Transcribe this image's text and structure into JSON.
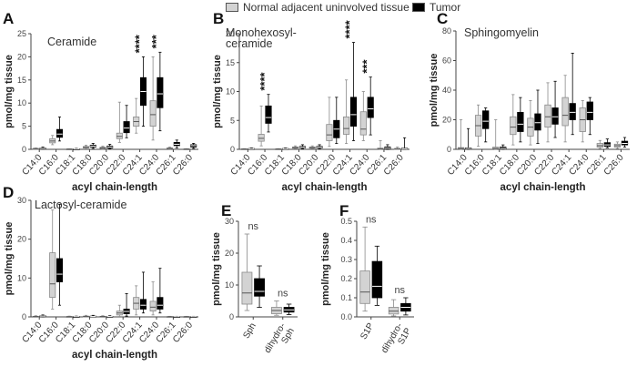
{
  "legend": {
    "normal_label": "Normal adjacent uninvolved tissue",
    "tumor_label": "Tumor",
    "normal_color": "#d3d3d3",
    "tumor_color": "#000000"
  },
  "chart_data": [
    {
      "panel_letter": "A",
      "type": "box",
      "title": "Ceramide",
      "xlabel": "acyl chain-length",
      "ylabel": "pmol/mg tissue",
      "ylim": [
        0,
        25
      ],
      "yticks": [
        0,
        5,
        10,
        15,
        20,
        25
      ],
      "categories": [
        "C14:0",
        "C16:0",
        "C18:1",
        "C18:0",
        "C20:0",
        "C22:0",
        "C24:1",
        "C24:0",
        "C26:1",
        "C26:0"
      ],
      "series": [
        {
          "name": "Normal adjacent uninvolved tissue",
          "color": "#d3d3d3",
          "boxes": [
            {
              "min": 0.05,
              "q1": 0.1,
              "median": 0.15,
              "q3": 0.2,
              "max": 0.3
            },
            {
              "min": 1.0,
              "q1": 1.4,
              "median": 1.8,
              "q3": 2.3,
              "max": 3.0
            },
            {
              "min": 0.0,
              "q1": 0.02,
              "median": 0.05,
              "q3": 0.08,
              "max": 0.12
            },
            {
              "min": 0.1,
              "q1": 0.3,
              "median": 0.45,
              "q3": 0.6,
              "max": 0.9
            },
            {
              "min": 0.05,
              "q1": 0.2,
              "median": 0.3,
              "q3": 0.45,
              "max": 0.7
            },
            {
              "min": 1.5,
              "q1": 2.3,
              "median": 2.8,
              "q3": 3.5,
              "max": 10.2
            },
            {
              "min": 3.5,
              "q1": 5.0,
              "median": 6.0,
              "q3": 7.0,
              "max": 11.0
            },
            {
              "min": 2.0,
              "q1": 5.0,
              "median": 7.5,
              "q3": 10.5,
              "max": 20.0
            },
            {
              "min": 0.05,
              "q1": 0.1,
              "median": 0.2,
              "q3": 0.3,
              "max": 0.5
            },
            {
              "min": 0.0,
              "q1": 0.02,
              "median": 0.05,
              "q3": 0.1,
              "max": 0.15
            }
          ]
        },
        {
          "name": "Tumor",
          "color": "#000000",
          "boxes": [
            {
              "min": 0.05,
              "q1": 0.15,
              "median": 0.2,
              "q3": 0.3,
              "max": 0.5
            },
            {
              "min": 1.8,
              "q1": 2.6,
              "median": 3.3,
              "q3": 4.3,
              "max": 7.0
            },
            {
              "min": 0.0,
              "q1": 0.03,
              "median": 0.06,
              "q3": 0.1,
              "max": 0.2
            },
            {
              "min": 0.2,
              "q1": 0.5,
              "median": 0.7,
              "q3": 0.9,
              "max": 1.3
            },
            {
              "min": 0.1,
              "q1": 0.3,
              "median": 0.5,
              "q3": 0.7,
              "max": 1.1
            },
            {
              "min": 2.5,
              "q1": 3.6,
              "median": 4.6,
              "q3": 6.0,
              "max": 9.5
            },
            {
              "min": 5.0,
              "q1": 9.5,
              "median": 12.5,
              "q3": 15.5,
              "max": 20.0
            },
            {
              "min": 4.0,
              "q1": 9.0,
              "median": 12.0,
              "q3": 15.5,
              "max": 21.0
            },
            {
              "min": 0.3,
              "q1": 0.8,
              "median": 1.1,
              "q3": 1.5,
              "max": 2.0
            },
            {
              "min": 0.2,
              "q1": 0.5,
              "median": 0.8,
              "q3": 1.0,
              "max": 1.3
            }
          ]
        }
      ],
      "significance": [
        {
          "category_index": 6,
          "label": "****"
        },
        {
          "category_index": 7,
          "label": "***"
        }
      ]
    },
    {
      "panel_letter": "B",
      "type": "box",
      "title": "Monohexosyl-\nceramide",
      "xlabel": "acyl chain-length",
      "ylabel": "pmol/mg tissue",
      "ylim": [
        0,
        20
      ],
      "yticks": [
        0,
        5,
        10,
        15,
        20
      ],
      "categories": [
        "C14:0",
        "C16:0",
        "C18:1",
        "C18:0",
        "C20:0",
        "C22:0",
        "C24:1",
        "C24:0",
        "C26:1",
        "C26:0"
      ],
      "series": [
        {
          "name": "Normal adjacent uninvolved tissue",
          "color": "#d3d3d3",
          "boxes": [
            {
              "min": 0.0,
              "q1": 0.03,
              "median": 0.05,
              "q3": 0.08,
              "max": 0.12
            },
            {
              "min": 0.6,
              "q1": 1.4,
              "median": 1.9,
              "q3": 2.6,
              "max": 7.5
            },
            {
              "min": 0.0,
              "q1": 0.02,
              "median": 0.05,
              "q3": 0.08,
              "max": 0.12
            },
            {
              "min": 0.1,
              "q1": 0.2,
              "median": 0.3,
              "q3": 0.4,
              "max": 0.6
            },
            {
              "min": 0.1,
              "q1": 0.2,
              "median": 0.3,
              "q3": 0.4,
              "max": 0.6
            },
            {
              "min": 0.5,
              "q1": 1.5,
              "median": 2.5,
              "q3": 4.3,
              "max": 9.0
            },
            {
              "min": 1.0,
              "q1": 2.6,
              "median": 3.6,
              "q3": 5.6,
              "max": 12.0
            },
            {
              "min": 1.5,
              "q1": 2.5,
              "median": 3.5,
              "q3": 6.5,
              "max": 10.0
            },
            {
              "min": 0.0,
              "q1": 0.05,
              "median": 0.1,
              "q3": 0.2,
              "max": 1.5
            },
            {
              "min": 0.0,
              "q1": 0.05,
              "median": 0.1,
              "q3": 0.15,
              "max": 0.4
            }
          ]
        },
        {
          "name": "Tumor",
          "color": "#000000",
          "boxes": [
            {
              "min": 0.0,
              "q1": 0.05,
              "median": 0.1,
              "q3": 0.15,
              "max": 0.25
            },
            {
              "min": 3.0,
              "q1": 4.5,
              "median": 5.5,
              "q3": 7.5,
              "max": 9.5
            },
            {
              "min": 0.0,
              "q1": 0.05,
              "median": 0.1,
              "q3": 0.15,
              "max": 0.25
            },
            {
              "min": 0.1,
              "q1": 0.25,
              "median": 0.35,
              "q3": 0.5,
              "max": 0.8
            },
            {
              "min": 0.1,
              "q1": 0.25,
              "median": 0.35,
              "q3": 0.5,
              "max": 0.8
            },
            {
              "min": 1.0,
              "q1": 2.0,
              "median": 3.5,
              "q3": 5.0,
              "max": 9.0
            },
            {
              "min": 1.5,
              "q1": 4.0,
              "median": 6.0,
              "q3": 9.0,
              "max": 18.5
            },
            {
              "min": 2.5,
              "q1": 5.5,
              "median": 7.0,
              "q3": 9.0,
              "max": 12.5
            },
            {
              "min": 0.0,
              "q1": 0.1,
              "median": 0.2,
              "q3": 0.4,
              "max": 0.8
            },
            {
              "min": 0.0,
              "q1": 0.05,
              "median": 0.1,
              "q3": 0.2,
              "max": 2.0
            }
          ]
        }
      ],
      "significance": [
        {
          "category_index": 1,
          "label": "****"
        },
        {
          "category_index": 6,
          "label": "****"
        },
        {
          "category_index": 7,
          "label": "***"
        }
      ]
    },
    {
      "panel_letter": "C",
      "type": "box",
      "title": "Sphingomyelin",
      "xlabel": "acyl chain-length",
      "ylabel": "pmol/mg tissue",
      "ylim": [
        0,
        80
      ],
      "yticks": [
        0,
        20,
        40,
        60,
        80
      ],
      "categories": [
        "C14:0",
        "C16:0",
        "C18:1",
        "C18:0",
        "C20:0",
        "C22:0",
        "C24:1",
        "C24:0",
        "C26:1",
        "C26:0"
      ],
      "series": [
        {
          "name": "Normal adjacent uninvolved tissue",
          "color": "#d3d3d3",
          "boxes": [
            {
              "min": 0.0,
              "q1": 0.3,
              "median": 0.6,
              "q3": 1.2,
              "max": 20.0
            },
            {
              "min": 2.0,
              "q1": 9.0,
              "median": 16.0,
              "q3": 23.0,
              "max": 30.0
            },
            {
              "min": 0.0,
              "q1": 0.3,
              "median": 0.6,
              "q3": 1.5,
              "max": 20.0
            },
            {
              "min": 3.0,
              "q1": 10.0,
              "median": 15.0,
              "q3": 22.0,
              "max": 37.0
            },
            {
              "min": 3.0,
              "q1": 9.0,
              "median": 15.0,
              "q3": 21.0,
              "max": 33.0
            },
            {
              "min": 5.0,
              "q1": 15.0,
              "median": 22.0,
              "q3": 30.0,
              "max": 45.0
            },
            {
              "min": 5.0,
              "q1": 16.0,
              "median": 23.0,
              "q3": 35.0,
              "max": 50.0
            },
            {
              "min": 5.0,
              "q1": 12.0,
              "median": 20.0,
              "q3": 28.0,
              "max": 33.0
            },
            {
              "min": 0.5,
              "q1": 1.5,
              "median": 2.5,
              "q3": 4.0,
              "max": 6.0
            },
            {
              "min": 0.5,
              "q1": 1.5,
              "median": 2.5,
              "q3": 3.5,
              "max": 5.0
            }
          ]
        },
        {
          "name": "Tumor",
          "color": "#000000",
          "boxes": [
            {
              "min": 0.0,
              "q1": 0.3,
              "median": 0.6,
              "q3": 1.0,
              "max": 14.0
            },
            {
              "min": 5.0,
              "q1": 14.0,
              "median": 19.0,
              "q3": 26.0,
              "max": 28.0
            },
            {
              "min": 0.0,
              "q1": 0.3,
              "median": 0.6,
              "q3": 1.5,
              "max": 3.0
            },
            {
              "min": 5.0,
              "q1": 12.0,
              "median": 17.0,
              "q3": 25.0,
              "max": 35.0
            },
            {
              "min": 4.0,
              "q1": 13.0,
              "median": 18.0,
              "q3": 24.0,
              "max": 40.0
            },
            {
              "min": 8.0,
              "q1": 17.0,
              "median": 22.0,
              "q3": 28.0,
              "max": 46.0
            },
            {
              "min": 10.0,
              "q1": 20.0,
              "median": 25.0,
              "q3": 31.0,
              "max": 65.0
            },
            {
              "min": 10.0,
              "q1": 20.0,
              "median": 25.0,
              "q3": 32.0,
              "max": 35.0
            },
            {
              "min": 1.0,
              "q1": 2.0,
              "median": 3.0,
              "q3": 4.5,
              "max": 7.0
            },
            {
              "min": 1.5,
              "q1": 3.0,
              "median": 4.0,
              "q3": 5.5,
              "max": 8.0
            }
          ]
        }
      ],
      "significance": []
    },
    {
      "panel_letter": "D",
      "type": "box",
      "title": "Lactosyl-ceramide",
      "xlabel": "acyl chain-length",
      "ylabel": "pmol/mg tissue",
      "ylim": [
        0,
        30
      ],
      "yticks": [
        0,
        10,
        20,
        30
      ],
      "categories": [
        "C14:0",
        "C16:0",
        "C18:1",
        "C18:0",
        "C20:0",
        "C22:0",
        "C24:1",
        "C24:0",
        "C26:1",
        "C26:0"
      ],
      "series": [
        {
          "name": "Normal adjacent uninvolved tissue",
          "color": "#d3d3d3",
          "boxes": [
            {
              "min": 0.0,
              "q1": 0.05,
              "median": 0.1,
              "q3": 0.15,
              "max": 0.3
            },
            {
              "min": 2.0,
              "q1": 5.0,
              "median": 8.5,
              "q3": 16.5,
              "max": 27.5
            },
            {
              "min": 0.0,
              "q1": 0.03,
              "median": 0.06,
              "q3": 0.1,
              "max": 0.2
            },
            {
              "min": 0.0,
              "q1": 0.05,
              "median": 0.1,
              "q3": 0.2,
              "max": 0.4
            },
            {
              "min": 0.0,
              "q1": 0.05,
              "median": 0.1,
              "q3": 0.15,
              "max": 0.3
            },
            {
              "min": 0.1,
              "q1": 0.5,
              "median": 1.0,
              "q3": 1.5,
              "max": 3.0
            },
            {
              "min": 0.5,
              "q1": 2.0,
              "median": 3.5,
              "q3": 5.0,
              "max": 8.0
            },
            {
              "min": 0.5,
              "q1": 1.5,
              "median": 2.5,
              "q3": 4.0,
              "max": 9.0
            },
            {
              "min": 0.0,
              "q1": 0.02,
              "median": 0.05,
              "q3": 0.08,
              "max": 0.15
            },
            {
              "min": 0.0,
              "q1": 0.02,
              "median": 0.05,
              "q3": 0.08,
              "max": 0.15
            }
          ]
        },
        {
          "name": "Tumor",
          "color": "#000000",
          "boxes": [
            {
              "min": 0.0,
              "q1": 0.1,
              "median": 0.2,
              "q3": 0.3,
              "max": 0.5
            },
            {
              "min": 3.0,
              "q1": 9.0,
              "median": 11.0,
              "q3": 15.0,
              "max": 29.0
            },
            {
              "min": 0.0,
              "q1": 0.03,
              "median": 0.06,
              "q3": 0.1,
              "max": 0.2
            },
            {
              "min": 0.0,
              "q1": 0.05,
              "median": 0.1,
              "q3": 0.2,
              "max": 0.4
            },
            {
              "min": 0.0,
              "q1": 0.05,
              "median": 0.1,
              "q3": 0.15,
              "max": 0.3
            },
            {
              "min": 0.2,
              "q1": 0.8,
              "median": 1.4,
              "q3": 2.0,
              "max": 6.0
            },
            {
              "min": 1.0,
              "q1": 2.0,
              "median": 3.0,
              "q3": 4.5,
              "max": 11.5
            },
            {
              "min": 1.0,
              "q1": 2.0,
              "median": 3.0,
              "q3": 5.0,
              "max": 12.5
            },
            {
              "min": 0.0,
              "q1": 0.02,
              "median": 0.05,
              "q3": 0.08,
              "max": 0.15
            },
            {
              "min": 0.0,
              "q1": 0.02,
              "median": 0.05,
              "q3": 0.08,
              "max": 0.15
            }
          ]
        }
      ],
      "significance": []
    },
    {
      "panel_letter": "E",
      "type": "box",
      "title": "",
      "xlabel": "",
      "ylabel": "pmol/mg tissue",
      "ylim": [
        0,
        30
      ],
      "yticks": [
        0,
        10,
        20,
        30
      ],
      "categories": [
        "Sph",
        "dihydro-\nSph"
      ],
      "series": [
        {
          "name": "Normal adjacent uninvolved tissue",
          "color": "#d3d3d3",
          "boxes": [
            {
              "min": 2.0,
              "q1": 4.0,
              "median": 7.5,
              "q3": 14.0,
              "max": 26.0
            },
            {
              "min": 0.5,
              "q1": 1.0,
              "median": 2.0,
              "q3": 3.0,
              "max": 5.0
            }
          ]
        },
        {
          "name": "Tumor",
          "color": "#000000",
          "boxes": [
            {
              "min": 3.0,
              "q1": 6.5,
              "median": 8.0,
              "q3": 12.0,
              "max": 16.0
            },
            {
              "min": 0.7,
              "q1": 1.5,
              "median": 2.2,
              "q3": 3.0,
              "max": 4.0
            }
          ]
        }
      ],
      "significance": [
        {
          "category_index": 0,
          "label": "ns"
        },
        {
          "category_index": 1,
          "label": "ns"
        }
      ]
    },
    {
      "panel_letter": "F",
      "type": "box",
      "title": "",
      "xlabel": "",
      "ylabel": "pmol/mg tissue",
      "ylim": [
        0,
        0.5
      ],
      "yticks": [
        0.0,
        0.1,
        0.2,
        0.3,
        0.4,
        0.5
      ],
      "categories": [
        "S1P",
        "dihydro-\nS1P"
      ],
      "series": [
        {
          "name": "Normal adjacent uninvolved tissue",
          "color": "#d3d3d3",
          "boxes": [
            {
              "min": 0.03,
              "q1": 0.07,
              "median": 0.13,
              "q3": 0.24,
              "max": 0.47
            },
            {
              "min": 0.005,
              "q1": 0.015,
              "median": 0.03,
              "q3": 0.05,
              "max": 0.09
            }
          ]
        },
        {
          "name": "Tumor",
          "color": "#000000",
          "boxes": [
            {
              "min": 0.06,
              "q1": 0.1,
              "median": 0.16,
              "q3": 0.29,
              "max": 0.37
            },
            {
              "min": 0.01,
              "q1": 0.03,
              "median": 0.05,
              "q3": 0.07,
              "max": 0.1
            }
          ]
        }
      ],
      "significance": [
        {
          "category_index": 0,
          "label": "ns"
        },
        {
          "category_index": 1,
          "label": "ns"
        }
      ]
    }
  ]
}
